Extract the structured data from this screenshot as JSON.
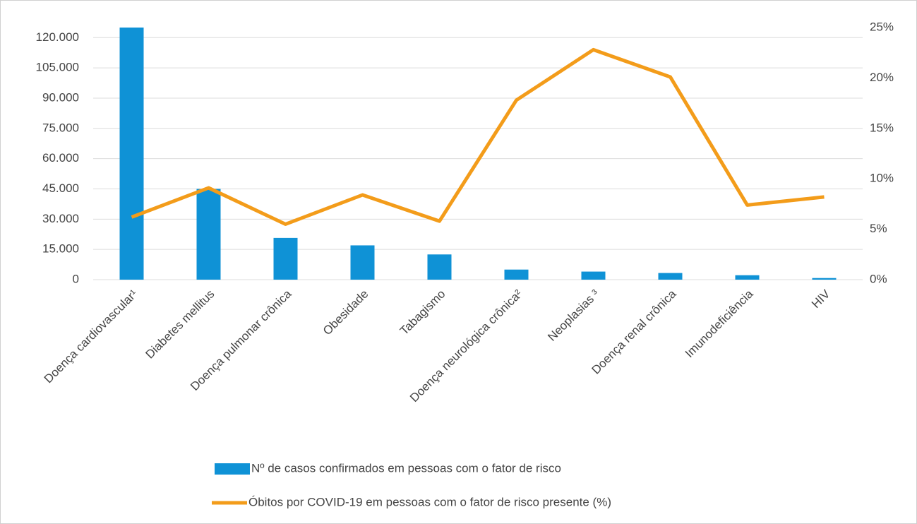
{
  "chart_data": {
    "type": "bar_line",
    "categories": [
      "Doença cardiovascular¹",
      "Diabetes mellitus",
      "Doença pulmonar crônica",
      "Obesidade",
      "Tabagismo",
      "Doença neurológica crônica²",
      "Neoplasias ³",
      "Doença renal crônica",
      "Imunodeficiência",
      "HIV"
    ],
    "series": [
      {
        "name": "Nº de casos confirmados em pessoas com o fator de risco",
        "type": "bar",
        "color": "#0f92d6",
        "values": [
          125000,
          45000,
          20700,
          17000,
          12500,
          5000,
          4000,
          3300,
          2200,
          800
        ]
      },
      {
        "name": "Óbitos por COVID-19 em pessoas com o fator de risco presente (%)",
        "type": "line",
        "axis": "y2",
        "color": "#f39c1a",
        "values": [
          6.2,
          9.1,
          5.5,
          8.4,
          5.8,
          17.8,
          22.8,
          20.1,
          7.4,
          8.2
        ]
      }
    ],
    "ylim": [
      0,
      125000
    ],
    "yticks": [
      0,
      {
        "value": 15000,
        "label": "15.000"
      },
      {
        "value": 30000,
        "label": "30.000"
      },
      {
        "value": 45000,
        "label": "45.000"
      },
      {
        "value": 60000,
        "label": "60.000"
      },
      {
        "value": 75000,
        "label": "75.000"
      },
      {
        "value": 90000,
        "label": "90.000"
      },
      {
        "value": 105000,
        "label": "105.000"
      },
      {
        "value": 120000,
        "label": "120.000"
      }
    ],
    "y2lim": [
      0,
      25
    ],
    "y2ticks": [
      {
        "value": 0,
        "label": "0%"
      },
      {
        "value": 5,
        "label": "5%"
      },
      {
        "value": 10,
        "label": "10%"
      },
      {
        "value": 15,
        "label": "15%"
      },
      {
        "value": 20,
        "label": "20%"
      },
      {
        "value": 25,
        "label": "25%"
      }
    ],
    "grid": true,
    "legend": "bottom"
  }
}
